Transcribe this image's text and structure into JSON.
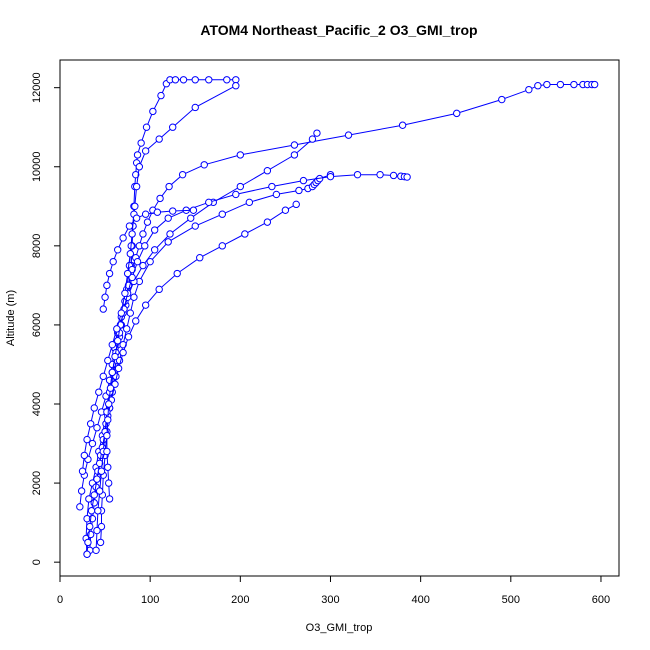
{
  "chart_data": {
    "type": "line",
    "title": "ATOM4 Northeast_Pacific_2 O3_GMI_trop",
    "xlabel": "O3_GMI_trop",
    "ylabel": "Altitude (m)",
    "xlim": [
      0,
      620
    ],
    "ylim": [
      -350,
      12700
    ],
    "x_ticks": [
      0,
      100,
      200,
      300,
      400,
      500,
      600
    ],
    "y_ticks": [
      0,
      2000,
      4000,
      6000,
      8000,
      10000,
      12000
    ],
    "grid": false,
    "legend": "none",
    "series_color": "#0000ff",
    "marker": "open-circle",
    "series": [
      {
        "x": [
          30,
          29,
          30,
          32,
          36,
          40,
          43,
          47,
          51,
          54,
          57,
          60,
          64,
          68,
          73,
          76,
          79,
          80,
          81,
          82,
          83,
          84,
          85,
          86,
          90,
          96,
          103,
          112,
          118,
          122,
          128,
          137,
          150,
          165,
          185,
          195
        ],
        "y": [
          200,
          600,
          1100,
          1600,
          2000,
          2400,
          2800,
          3200,
          3800,
          4200,
          4600,
          5000,
          5500,
          6000,
          6500,
          7000,
          7500,
          8000,
          8500,
          9000,
          9500,
          9800,
          10100,
          10300,
          10600,
          11000,
          11400,
          11800,
          12100,
          12200,
          12200,
          12200,
          12200,
          12200,
          12200,
          12200
        ]
      },
      {
        "x": [
          45,
          46,
          46,
          47,
          48,
          50,
          52,
          55,
          58,
          62,
          66,
          70,
          74,
          77,
          79,
          81,
          83,
          85,
          88,
          95,
          110,
          125,
          150,
          195
        ],
        "y": [
          500,
          900,
          1300,
          1700,
          2200,
          2700,
          3300,
          3900,
          4500,
          5100,
          5700,
          6300,
          6900,
          7500,
          8000,
          8500,
          9000,
          9500,
          10000,
          10400,
          10700,
          11000,
          11500,
          12050
        ]
      },
      {
        "x": [
          33,
          34,
          36,
          38,
          40,
          42,
          45,
          48,
          51,
          55,
          58,
          62,
          66,
          70,
          74,
          78,
          82,
          88,
          100,
          120,
          150,
          180,
          210,
          240,
          265,
          275,
          280,
          282,
          284,
          286,
          288,
          300
        ],
        "y": [
          300,
          700,
          1100,
          1500,
          1900,
          2300,
          2700,
          3100,
          3500,
          3900,
          4300,
          4700,
          5100,
          5500,
          5900,
          6300,
          6700,
          7100,
          7600,
          8100,
          8500,
          8800,
          9100,
          9300,
          9400,
          9450,
          9500,
          9550,
          9600,
          9650,
          9700,
          9800
        ]
      },
      {
        "x": [
          22,
          24,
          27,
          31,
          36,
          41,
          46,
          51,
          55,
          58,
          61,
          64,
          68,
          72,
          76,
          80,
          84,
          88,
          92,
          97,
          103,
          111,
          121,
          136,
          160,
          200,
          260,
          320,
          380,
          440,
          490,
          520,
          530,
          540,
          555,
          570,
          580,
          585,
          590,
          593
        ],
        "y": [
          1400,
          1800,
          2200,
          2600,
          3000,
          3400,
          3800,
          4200,
          4600,
          5000,
          5400,
          5800,
          6200,
          6600,
          7000,
          7400,
          7700,
          8000,
          8300,
          8600,
          8900,
          9200,
          9500,
          9800,
          10050,
          10300,
          10550,
          10800,
          11050,
          11350,
          11700,
          11950,
          12050,
          12080,
          12080,
          12080,
          12080,
          12080,
          12080,
          12080
        ]
      },
      {
        "x": [
          30,
          31,
          33,
          35,
          38,
          41,
          44,
          47,
          50,
          53,
          57,
          61,
          65,
          70,
          76,
          84,
          95,
          110,
          130,
          155,
          180,
          205,
          230,
          250,
          262
        ],
        "y": [
          200,
          500,
          900,
          1300,
          1700,
          2100,
          2500,
          2900,
          3300,
          3700,
          4100,
          4500,
          4900,
          5300,
          5700,
          6100,
          6500,
          6900,
          7300,
          7700,
          8000,
          8300,
          8600,
          8900,
          9050
        ]
      },
      {
        "x": [
          40,
          41,
          42,
          44,
          46,
          48,
          50,
          52,
          55,
          58,
          62,
          66,
          70,
          75,
          82,
          92,
          105,
          122,
          145,
          170,
          200,
          230,
          260,
          280,
          285
        ],
        "y": [
          300,
          800,
          1300,
          1800,
          2300,
          2800,
          3300,
          3800,
          4300,
          4800,
          5300,
          5800,
          6300,
          6700,
          7100,
          7500,
          7900,
          8300,
          8700,
          9100,
          9500,
          9900,
          10300,
          10700,
          10850
        ]
      },
      {
        "x": [
          55,
          54,
          53,
          52,
          52,
          53,
          54,
          56,
          58,
          61,
          64,
          67,
          71,
          75,
          80,
          86,
          94,
          105,
          120,
          140,
          165,
          195,
          235,
          270,
          300,
          330,
          355,
          370,
          378,
          382,
          385
        ],
        "y": [
          1600,
          2000,
          2400,
          2800,
          3200,
          3600,
          4000,
          4400,
          4800,
          5200,
          5600,
          6000,
          6400,
          6800,
          7200,
          7600,
          8000,
          8400,
          8700,
          8900,
          9100,
          9300,
          9500,
          9650,
          9750,
          9800,
          9800,
          9780,
          9760,
          9750,
          9740
        ]
      },
      {
        "x": [
          25,
          27,
          30,
          34,
          38,
          43,
          48,
          53,
          58,
          63,
          68,
          72,
          75,
          78,
          80,
          82
        ],
        "y": [
          2300,
          2700,
          3100,
          3500,
          3900,
          4300,
          4700,
          5100,
          5500,
          5900,
          6300,
          6800,
          7300,
          7800,
          8300,
          8800
        ]
      },
      {
        "x": [
          48,
          50,
          52,
          55,
          59,
          64,
          70,
          77,
          85,
          95,
          108,
          125,
          148
        ],
        "y": [
          6400,
          6700,
          7000,
          7300,
          7600,
          7900,
          8200,
          8500,
          8700,
          8800,
          8850,
          8880,
          8900
        ]
      }
    ]
  }
}
